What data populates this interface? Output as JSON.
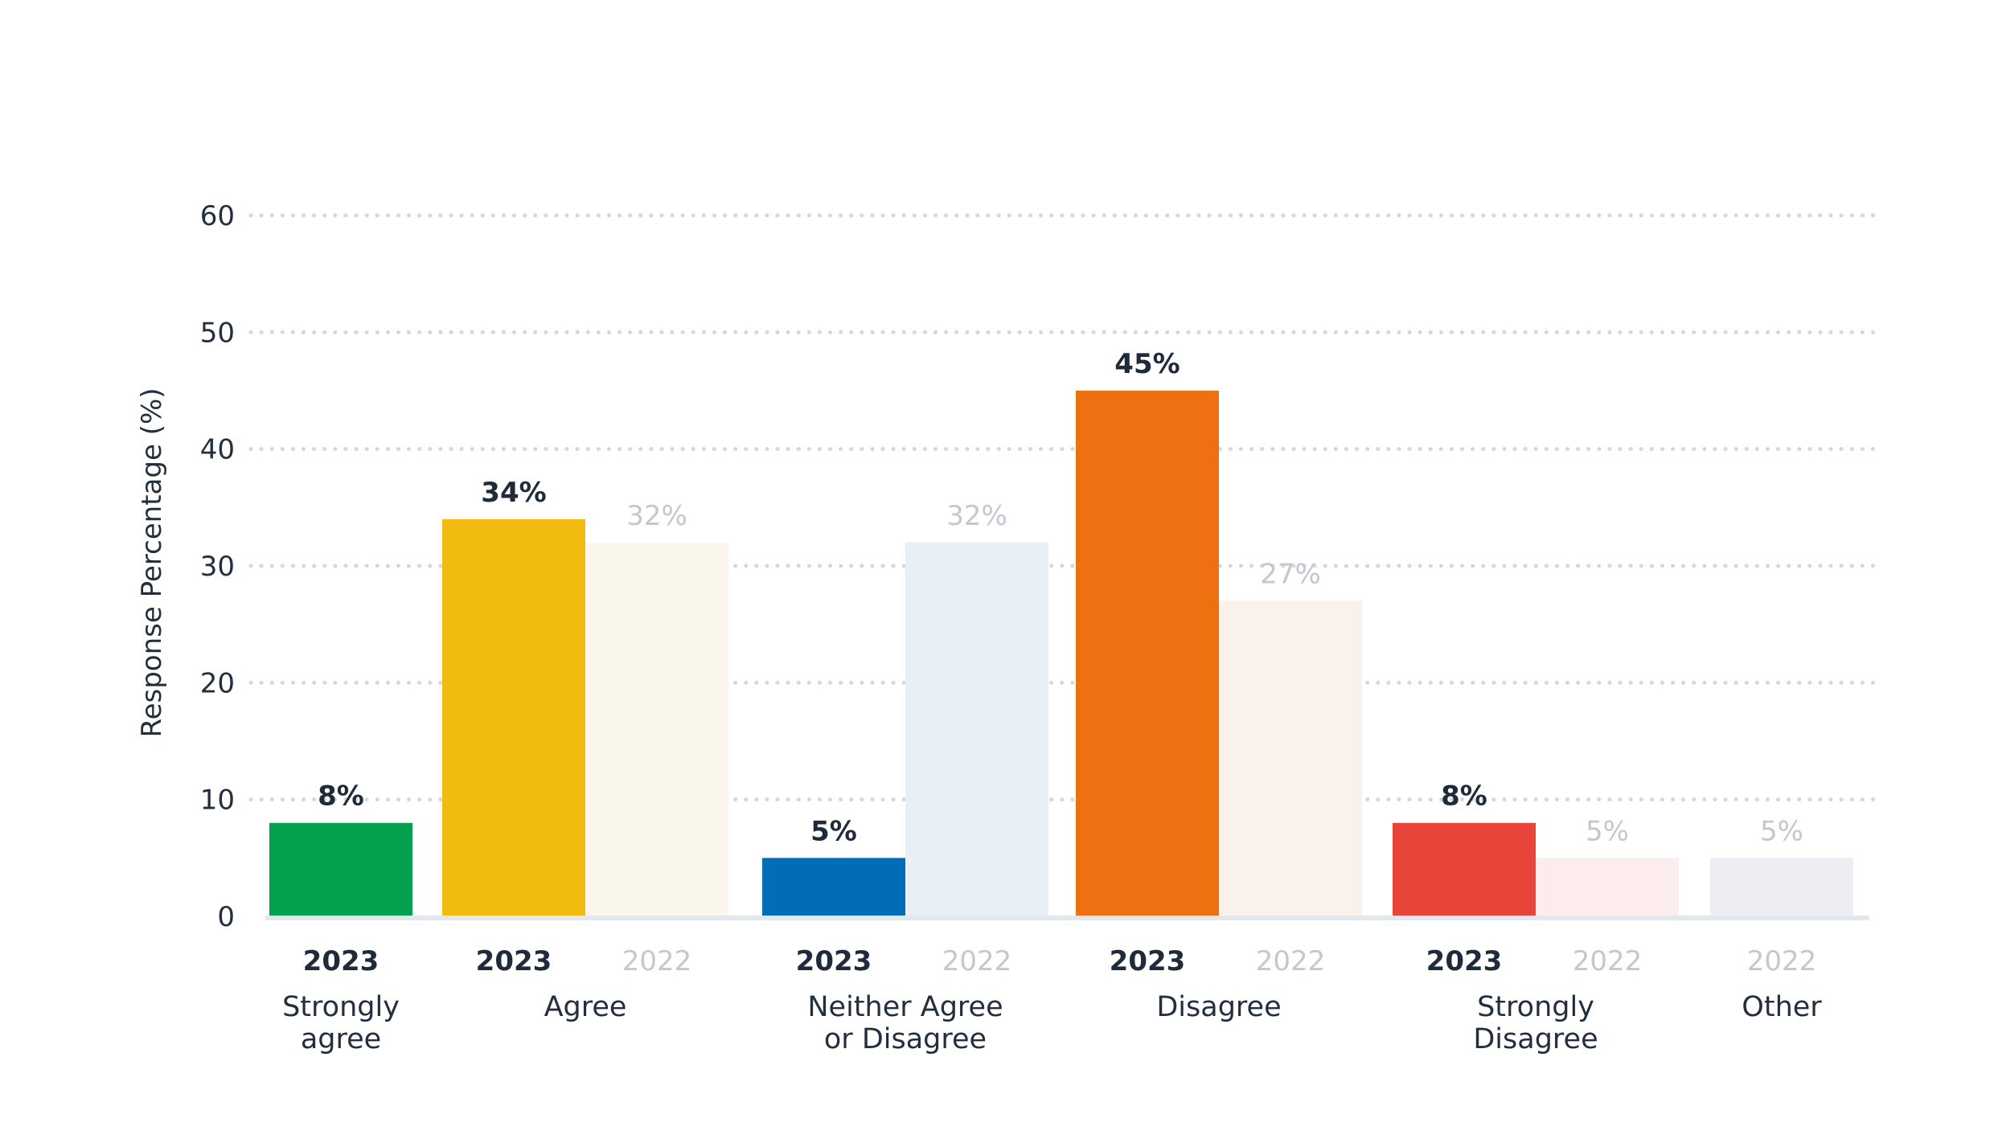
{
  "chart_data": {
    "type": "bar",
    "title": "",
    "ylabel": "Response Percentage (%)",
    "xlabel": "",
    "ylim": [
      0,
      60
    ],
    "yticks": [
      "0",
      "10",
      "20",
      "30",
      "40",
      "50",
      "60"
    ],
    "grid": true,
    "legend": "none",
    "categories": [
      {
        "label_lines": [
          "Strongly",
          "agree"
        ],
        "bars": [
          {
            "year": "2023",
            "value": 8,
            "label": "8%",
            "color": "#03a050"
          }
        ]
      },
      {
        "label_lines": [
          "Agree"
        ],
        "bars": [
          {
            "year": "2023",
            "value": 34,
            "label": "34%",
            "color": "#f1bb10"
          },
          {
            "year": "2022",
            "value": 32,
            "label": "32%",
            "color": "#fbf6ec"
          }
        ]
      },
      {
        "label_lines": [
          "Neither Agree",
          "or Disagree"
        ],
        "bars": [
          {
            "year": "2023",
            "value": 5,
            "label": "5%",
            "color": "#006db6"
          },
          {
            "year": "2022",
            "value": 32,
            "label": "32%",
            "color": "#e9eff7"
          }
        ]
      },
      {
        "label_lines": [
          "Disagree"
        ],
        "bars": [
          {
            "year": "2023",
            "value": 45,
            "label": "45%",
            "color": "#ef7011"
          },
          {
            "year": "2022",
            "value": 27,
            "label": "27%",
            "color": "#faf1eb"
          }
        ]
      },
      {
        "label_lines": [
          "Strongly",
          "Disagree"
        ],
        "bars": [
          {
            "year": "2023",
            "value": 8,
            "label": "8%",
            "color": "#e8453a"
          },
          {
            "year": "2022",
            "value": 5,
            "label": "5%",
            "color": "#fcedec"
          }
        ]
      },
      {
        "label_lines": [
          "Other"
        ],
        "bars": [
          {
            "year": "2022",
            "value": 5,
            "label": "5%",
            "color": "#efedf4"
          }
        ]
      }
    ]
  }
}
